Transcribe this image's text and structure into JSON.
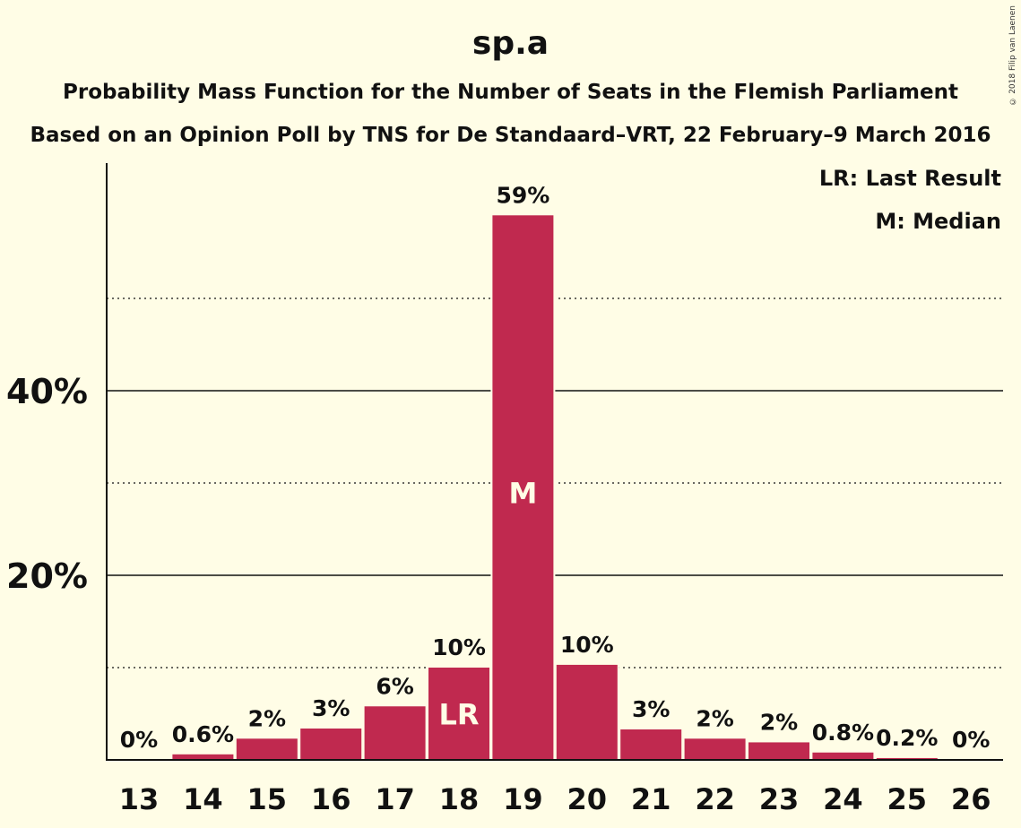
{
  "chart_data": {
    "type": "bar",
    "title": "sp.a",
    "subtitle": "Probability Mass Function for the Number of Seats in the Flemish Parliament",
    "subtitle2": "Based on an Opinion Poll by TNS for De Standaard–VRT, 22 February–9 March 2016",
    "copyright": "© 2018 Filip van Laenen",
    "categories": [
      "13",
      "14",
      "15",
      "16",
      "17",
      "18",
      "19",
      "20",
      "21",
      "22",
      "23",
      "24",
      "25",
      "26"
    ],
    "values": [
      0,
      0.6,
      2.3,
      3.4,
      5.8,
      10,
      59,
      10.3,
      3.3,
      2.3,
      1.9,
      0.8,
      0.2,
      0
    ],
    "value_labels": [
      "0%",
      "0.6%",
      "2%",
      "3%",
      "6%",
      "10%",
      "59%",
      "10%",
      "3%",
      "2%",
      "2%",
      "0.8%",
      "0.2%",
      "0%"
    ],
    "bar_markers": {
      "18": "LR",
      "19": "M"
    },
    "y_ticks": [
      20,
      40
    ],
    "y_tick_labels": [
      "20%",
      "40%"
    ],
    "y_minor_gridlines": [
      10,
      30,
      50
    ],
    "ylim": [
      0,
      65
    ],
    "legend": [
      "LR: Last Result",
      "M: Median"
    ],
    "legend_position": "top-right",
    "colors": {
      "bar": "#C0294F",
      "background": "#FFFDE6",
      "text": "#111111",
      "marker_text": "#FFFDE6"
    }
  }
}
